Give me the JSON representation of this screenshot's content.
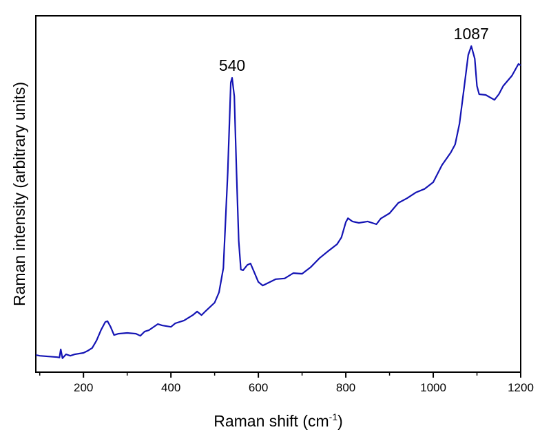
{
  "chart_data": {
    "type": "line",
    "title": "",
    "xlabel": "Raman shift (cm",
    "xlabel_superscript": "-1",
    "xlabel_suffix": ")",
    "ylabel": "Raman intensity (arbitrary units)",
    "xlim": [
      91,
      1200
    ],
    "ylim": [
      0,
      100
    ],
    "x_ticks": [
      200,
      400,
      600,
      800,
      1000,
      1200
    ],
    "x_minor_ticks": [
      100,
      300,
      500,
      700,
      900,
      1100
    ],
    "y_ticks": [],
    "grid": false,
    "line_color": "#1414b4",
    "annotations": [
      {
        "text": "540",
        "x": 540,
        "y": 82.6
      },
      {
        "text": "1087",
        "x": 1087,
        "y": 91.5
      }
    ],
    "series": [
      {
        "x": [
          91,
          100,
          120,
          140,
          145,
          148,
          152,
          160,
          170,
          180,
          200,
          210,
          220,
          230,
          240,
          250,
          255,
          262,
          270,
          280,
          300,
          320,
          330,
          340,
          350,
          370,
          380,
          400,
          410,
          430,
          450,
          460,
          470,
          480,
          500,
          510,
          520,
          530,
          537,
          540,
          545,
          550,
          555,
          560,
          565,
          575,
          582,
          590,
          600,
          610,
          620,
          640,
          660,
          680,
          700,
          720,
          740,
          760,
          780,
          790,
          800,
          805,
          815,
          830,
          850,
          870,
          880,
          900,
          920,
          940,
          960,
          980,
          1000,
          1020,
          1040,
          1050,
          1060,
          1070,
          1080,
          1087,
          1095,
          1100,
          1105,
          1120,
          1140,
          1150,
          1160,
          1180,
          1195,
          1200
        ],
        "y": [
          4.8,
          4.6,
          4.4,
          4.2,
          4.1,
          6.4,
          3.9,
          5.0,
          4.6,
          5.0,
          5.4,
          6.0,
          6.8,
          8.9,
          11.8,
          14.1,
          14.3,
          12.7,
          10.4,
          10.8,
          11.0,
          10.8,
          10.2,
          11.4,
          11.8,
          13.5,
          13.1,
          12.7,
          13.7,
          14.5,
          16.0,
          17.0,
          16.0,
          17.2,
          19.5,
          22.4,
          29.2,
          56.2,
          81.3,
          82.6,
          77.4,
          56.2,
          36.9,
          28.8,
          28.6,
          30.1,
          30.5,
          28.2,
          25.3,
          24.3,
          24.9,
          26.1,
          26.3,
          27.8,
          27.6,
          29.5,
          32.0,
          34.0,
          35.9,
          37.8,
          42.1,
          43.2,
          42.3,
          41.9,
          42.3,
          41.5,
          43.1,
          44.6,
          47.5,
          48.8,
          50.4,
          51.4,
          53.3,
          58.1,
          61.6,
          63.9,
          69.7,
          79.3,
          89.0,
          91.5,
          88.0,
          80.3,
          78.0,
          77.8,
          76.4,
          78.0,
          80.3,
          83.2,
          86.5,
          86.1
        ]
      }
    ]
  }
}
